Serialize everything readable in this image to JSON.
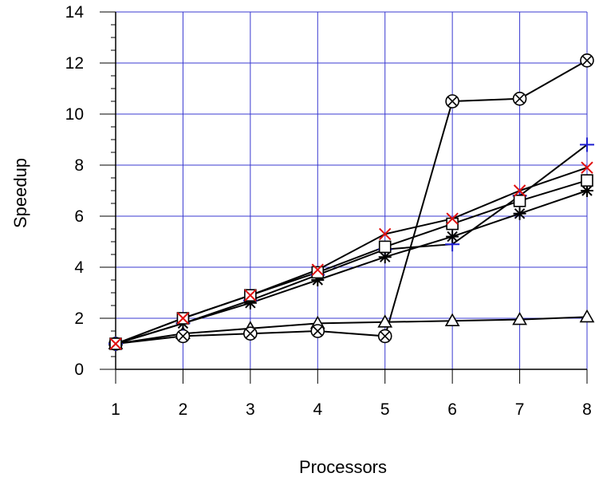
{
  "chart_data": {
    "type": "line",
    "xlabel": "Processors",
    "ylabel": "Speedup",
    "x": [
      1,
      2,
      3,
      4,
      5,
      6,
      7,
      8
    ],
    "xlim": [
      1,
      8
    ],
    "ylim": [
      0,
      14
    ],
    "xticks": [
      "1",
      "2",
      "3",
      "4",
      "5",
      "6",
      "7",
      "8"
    ],
    "yticks": [
      "0",
      "2",
      "4",
      "6",
      "8",
      "10",
      "12",
      "14"
    ],
    "grid": true,
    "series": [
      {
        "marker": "triangle",
        "color": "#000000",
        "values": [
          1.0,
          1.4,
          1.6,
          1.8,
          1.85,
          1.9,
          1.95,
          2.05
        ]
      },
      {
        "marker": "circle-x",
        "color": "#000000",
        "values": [
          1.0,
          1.3,
          1.4,
          1.5,
          1.3,
          10.5,
          10.6,
          12.1
        ]
      },
      {
        "marker": "plus",
        "color": "#1f1fd0",
        "values": [
          1.0,
          1.8,
          2.7,
          3.7,
          4.7,
          4.9,
          6.8,
          8.8
        ]
      },
      {
        "marker": "asterisk",
        "color": "#000000",
        "values": [
          1.0,
          1.8,
          2.6,
          3.5,
          4.4,
          5.2,
          6.1,
          7.0
        ]
      },
      {
        "marker": "square",
        "color": "#000000",
        "values": [
          1.0,
          2.0,
          2.9,
          3.8,
          4.8,
          5.7,
          6.6,
          7.4
        ]
      },
      {
        "marker": "x",
        "color": "#e01010",
        "values": [
          1.0,
          2.0,
          2.9,
          3.9,
          5.3,
          5.9,
          7.0,
          7.9
        ]
      }
    ]
  }
}
